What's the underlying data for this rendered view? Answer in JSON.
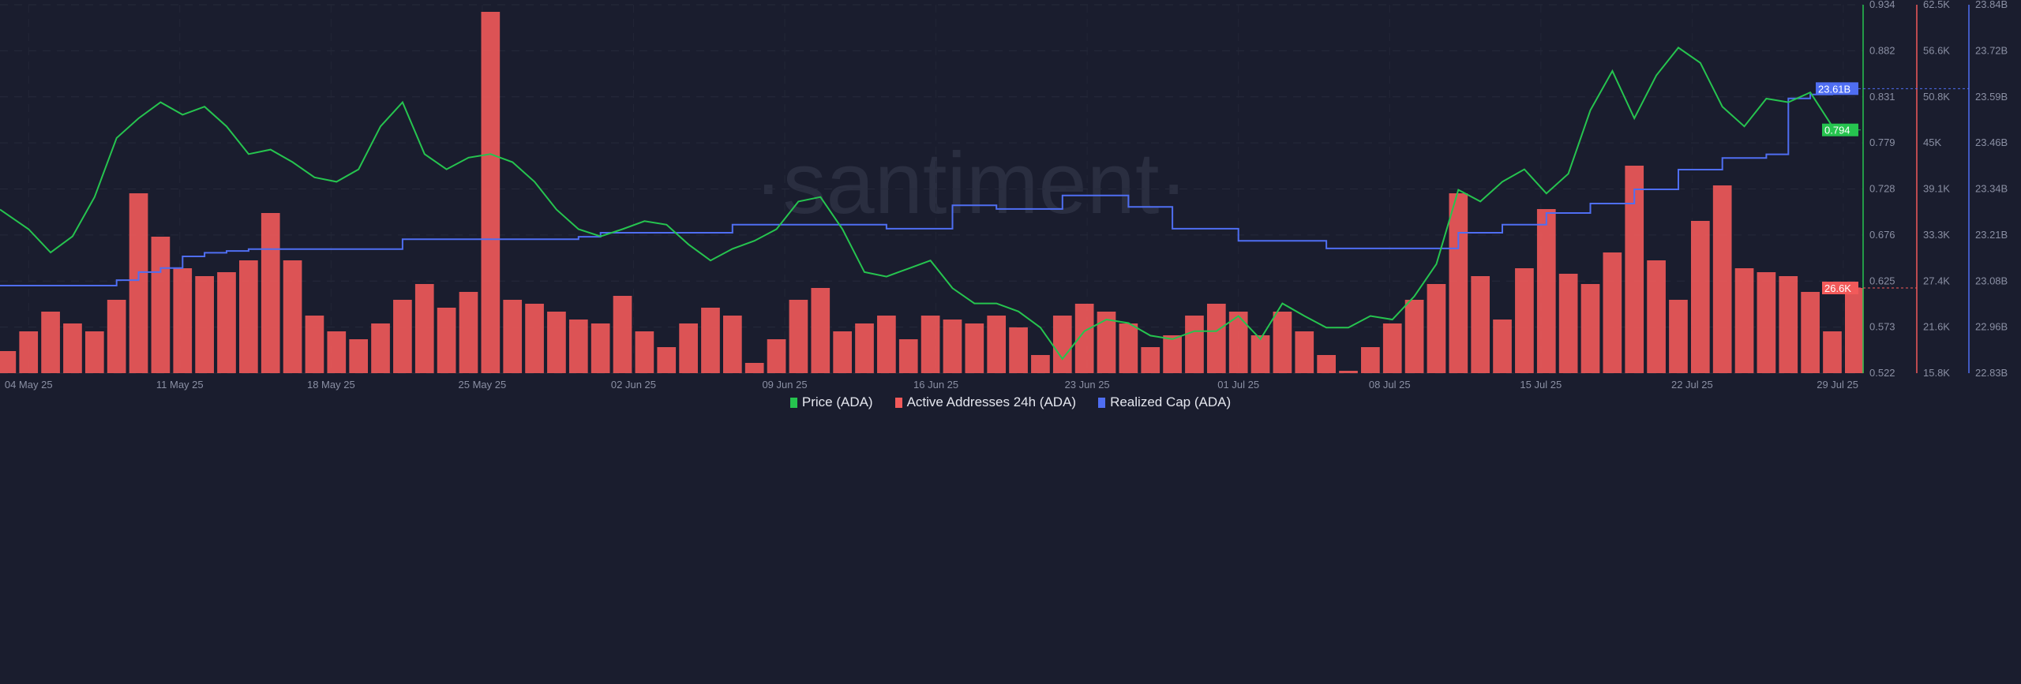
{
  "chart_data": {
    "type": "line",
    "title": "",
    "watermark": "·santiment·",
    "x_start_day": "04 May 25",
    "x_ticks": [
      "04 May 25",
      "11 May 25",
      "18 May 25",
      "25 May 25",
      "02 Jun 25",
      "09 Jun 25",
      "16 Jun 25",
      "23 Jun 25",
      "01 Jul 25",
      "08 Jul 25",
      "15 Jul 25",
      "22 Jul 25",
      "29 Jul 25"
    ],
    "axes": {
      "price": {
        "ticks": [
          "0.934",
          "0.882",
          "0.831",
          "0.779",
          "0.728",
          "0.676",
          "0.625",
          "0.573",
          "0.522"
        ],
        "range": [
          0.522,
          0.934
        ],
        "current": "0.794"
      },
      "active": {
        "ticks": [
          "62.5K",
          "56.6K",
          "50.8K",
          "45K",
          "39.1K",
          "33.3K",
          "27.4K",
          "21.6K",
          "15.8K"
        ],
        "range": [
          15.8,
          62.5
        ],
        "current": "26.6K"
      },
      "cap": {
        "ticks": [
          "23.84B",
          "23.72B",
          "23.59B",
          "23.46B",
          "23.34B",
          "23.21B",
          "23.08B",
          "22.96B",
          "22.83B"
        ],
        "range": [
          22.83,
          23.84
        ],
        "current": "23.61B"
      }
    },
    "series": [
      {
        "name": "Price (ADA)",
        "color": "#26c44f",
        "type": "line",
        "start_day": 0,
        "values": [
          0.683,
          0.657,
          0.675,
          0.719,
          0.785,
          0.807,
          0.825,
          0.811,
          0.82,
          0.798,
          0.767,
          0.772,
          0.758,
          0.741,
          0.736,
          0.75,
          0.798,
          0.825,
          0.767,
          0.75,
          0.763,
          0.767,
          0.758,
          0.736,
          0.705,
          0.683,
          0.675,
          0.683,
          0.692,
          0.688,
          0.666,
          0.648,
          0.661,
          0.67,
          0.683,
          0.714,
          0.719,
          0.683,
          0.635,
          0.63,
          0.639,
          0.648,
          0.617,
          0.6,
          0.6,
          0.591,
          0.573,
          0.538,
          0.569,
          0.582,
          0.578,
          0.564,
          0.56,
          0.569,
          0.569,
          0.586,
          0.56,
          0.6,
          0.586,
          0.573,
          0.573,
          0.586,
          0.582,
          0.608,
          0.644,
          0.727,
          0.714,
          0.736,
          0.75,
          0.723,
          0.745,
          0.816,
          0.86,
          0.807,
          0.855,
          0.886,
          0.869,
          0.82,
          0.798,
          0.829,
          0.825,
          0.836,
          0.798,
          0.794
        ]
      },
      {
        "name": "Active Addresses 24h (ADA)",
        "color": "#f25a5a",
        "type": "bar",
        "start_day": -1,
        "unit": "K",
        "values": [
          18.6,
          21.1,
          23.6,
          22.1,
          21.1,
          25.1,
          38.6,
          33.1,
          29.1,
          28.1,
          28.6,
          30.1,
          36.1,
          30.1,
          23.1,
          21.1,
          20.1,
          22.1,
          25.1,
          27.1,
          24.1,
          26.1,
          61.6,
          25.1,
          24.6,
          23.6,
          22.6,
          22.1,
          25.6,
          21.1,
          19.1,
          22.1,
          24.1,
          23.1,
          17.1,
          20.1,
          25.1,
          26.6,
          21.1,
          22.1,
          23.1,
          20.1,
          23.1,
          22.6,
          22.1,
          23.1,
          21.6,
          18.1,
          23.1,
          24.6,
          23.6,
          22.1,
          19.1,
          20.6,
          23.1,
          24.6,
          23.6,
          20.6,
          23.6,
          21.1,
          18.1,
          16.1,
          19.1,
          22.1,
          25.1,
          27.1,
          38.6,
          28.1,
          22.6,
          29.1,
          36.6,
          28.4,
          27.1,
          31.1,
          42.1,
          30.1,
          25.1,
          35.1,
          39.6,
          29.1,
          28.6,
          28.1,
          26.1,
          21.1,
          26.6
        ]
      },
      {
        "name": "Realized Cap (ADA)",
        "color": "#4f6ef2",
        "type": "step",
        "start_day": -1,
        "unit": "B",
        "values": [
          23.07,
          23.07,
          23.07,
          23.07,
          23.07,
          23.085,
          23.107,
          23.118,
          23.15,
          23.16,
          23.165,
          23.17,
          23.17,
          23.17,
          23.17,
          23.17,
          23.17,
          23.17,
          23.197,
          23.197,
          23.197,
          23.197,
          23.197,
          23.197,
          23.197,
          23.197,
          23.204,
          23.215,
          23.215,
          23.215,
          23.215,
          23.215,
          23.215,
          23.237,
          23.237,
          23.237,
          23.237,
          23.237,
          23.237,
          23.237,
          23.226,
          23.226,
          23.226,
          23.29,
          23.29,
          23.28,
          23.28,
          23.28,
          23.317,
          23.317,
          23.317,
          23.286,
          23.286,
          23.226,
          23.226,
          23.226,
          23.193,
          23.193,
          23.193,
          23.193,
          23.172,
          23.172,
          23.172,
          23.172,
          23.172,
          23.172,
          23.215,
          23.215,
          23.237,
          23.237,
          23.269,
          23.269,
          23.295,
          23.295,
          23.334,
          23.334,
          23.388,
          23.388,
          23.42,
          23.42,
          23.43,
          23.583,
          23.594,
          23.604,
          23.61
        ]
      }
    ]
  },
  "legend": [
    {
      "label": "Price (ADA)",
      "color": "#26c44f"
    },
    {
      "label": "Active Addresses 24h (ADA)",
      "color": "#f25a5a"
    },
    {
      "label": "Realized Cap (ADA)",
      "color": "#4f6ef2"
    }
  ]
}
